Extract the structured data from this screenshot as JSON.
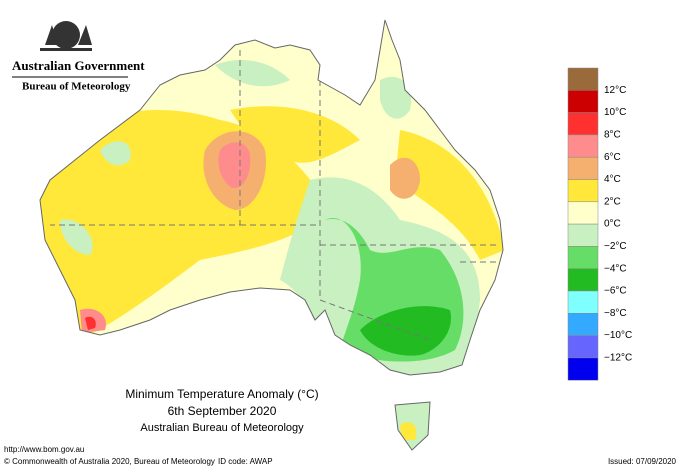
{
  "header": {
    "agency": "Australian Government",
    "bureau": "Bureau of Meteorology"
  },
  "title": {
    "line1": "Minimum Temperature Anomaly (°C)",
    "line2": "6th September 2020",
    "line3": "Australian Bureau of Meteorology"
  },
  "legend": {
    "colors": [
      "#9b6a3a",
      "#cc0000",
      "#ff3030",
      "#ff8c8c",
      "#f5b070",
      "#ffe83a",
      "#ffffcc",
      "#c8f0c0",
      "#66dd66",
      "#22bb22",
      "#80ffff",
      "#33aaff",
      "#6666ff",
      "#0000ee"
    ],
    "labels": [
      "12°C",
      "10°C",
      "8°C",
      "6°C",
      "4°C",
      "2°C",
      "0°C",
      "−2°C",
      "−4°C",
      "−6°C",
      "−8°C",
      "−10°C",
      "−12°C"
    ]
  },
  "footer": {
    "url": "http://www.bom.gov.au",
    "copyright": "© Commonwealth of Australia 2020, Bureau of Meteorology",
    "id_code": "ID code: AWAP",
    "issued": "Issued: 07/09/2020"
  }
}
